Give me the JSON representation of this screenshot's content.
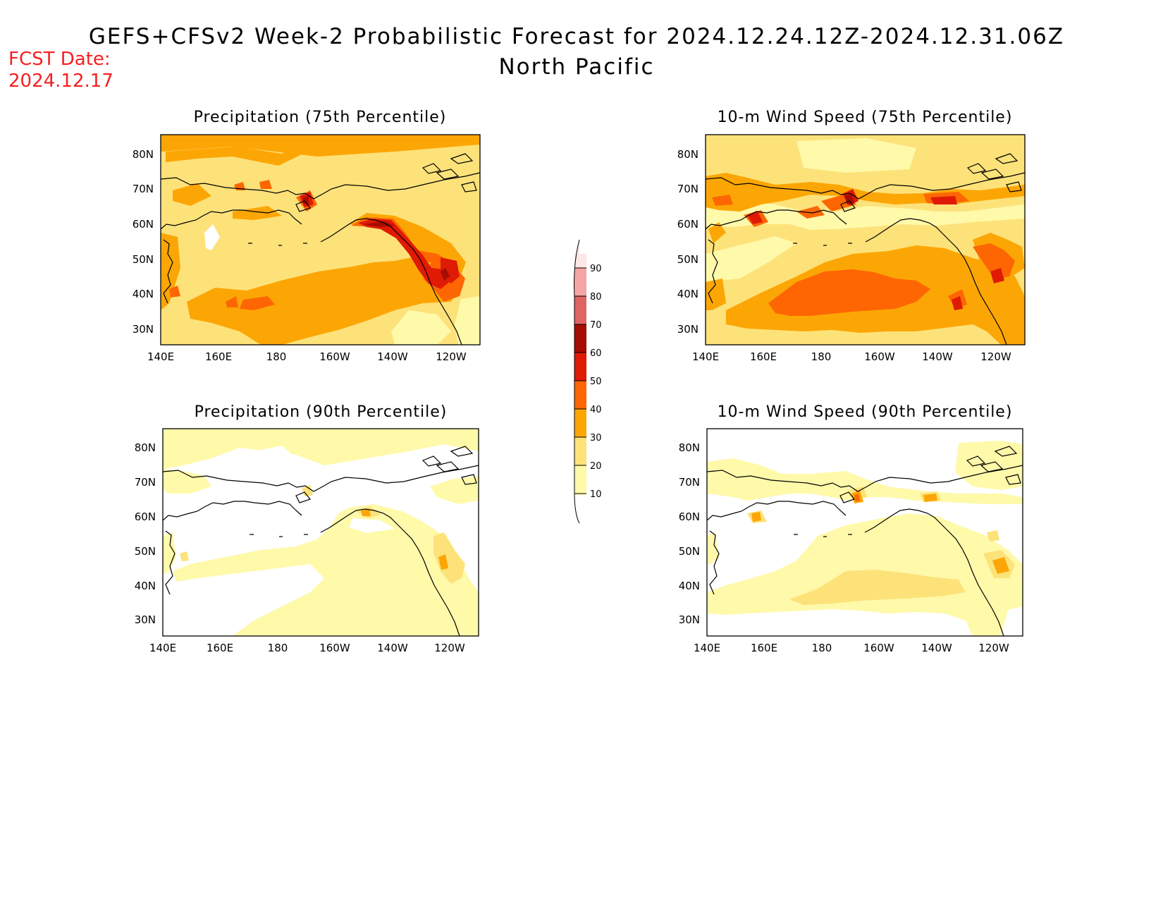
{
  "figure": {
    "title": "GEFS+CFSv2 Week-2 Probabilistic Forecast for 2024.12.24.12Z-2024.12.31.06Z",
    "subtitle": "North Pacific",
    "fcst_label": "FCST Date:",
    "fcst_date": "2024.12.17"
  },
  "colors": {
    "band_10_20": "#fff9aa",
    "band_20_30": "#fde27a",
    "band_30_40": "#fca605",
    "band_40_50": "#fd6602",
    "band_50_60": "#df1a05",
    "band_60_70": "#a50d02",
    "band_70_80": "#df6464",
    "band_80_90": "#f5a5a5",
    "band_90_100": "#fde6e6",
    "coast": "#000000",
    "title_red": "#f52020"
  },
  "axes": {
    "lon_ticks": [
      "140E",
      "160E",
      "180",
      "160W",
      "140W",
      "120W"
    ],
    "lat_ticks": [
      "80N",
      "70N",
      "60N",
      "50N",
      "40N",
      "30N"
    ]
  },
  "colorbar": {
    "levels": [
      "10",
      "20",
      "30",
      "40",
      "50",
      "60",
      "70",
      "80",
      "90"
    ]
  },
  "panels": [
    {
      "title": "Precipitation (75th Percentile)",
      "variable": "precip_p75",
      "base_band": "band_20_30"
    },
    {
      "title": "10-m Wind Speed (75th Percentile)",
      "variable": "wind_p75",
      "base_band": "band_20_30"
    },
    {
      "title": "Precipitation (90th Percentile)",
      "variable": "precip_p90",
      "base_band": "band_10_20"
    },
    {
      "title": "10-m Wind Speed (90th Percentile)",
      "variable": "wind_p90",
      "base_band": "band_10_20"
    }
  ]
}
